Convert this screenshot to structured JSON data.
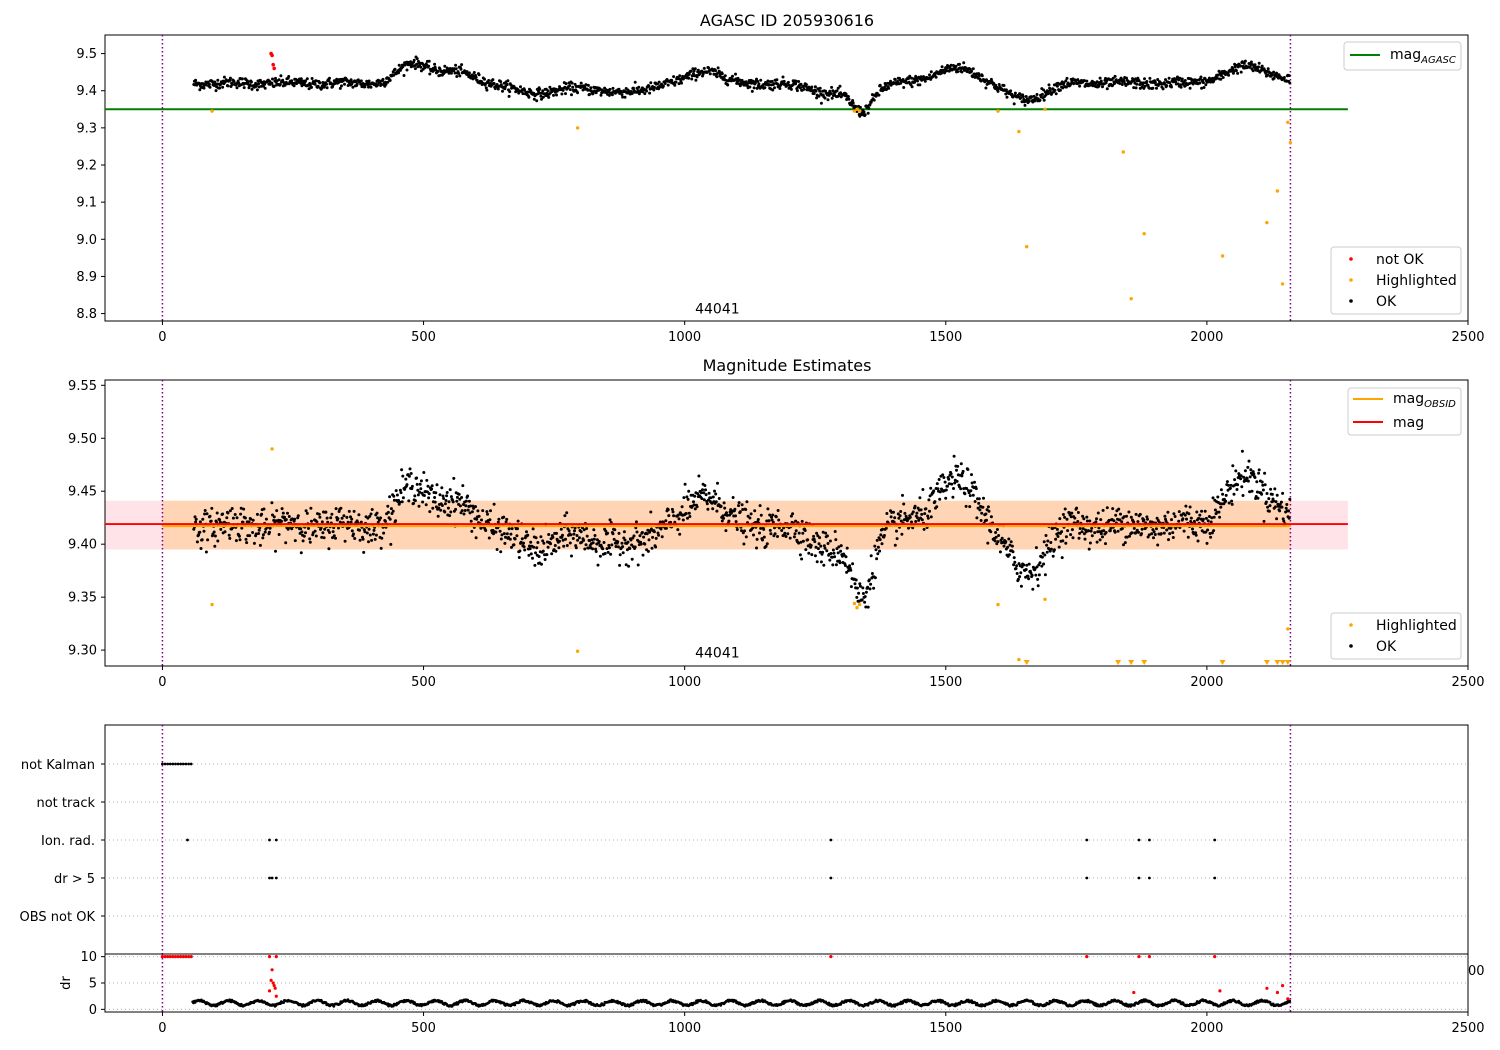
{
  "colors": {
    "ok": "#000000",
    "highlighted": "#ffa500",
    "not_ok": "#ff0000",
    "mag_agasc": "#008000",
    "mag_obsid": "#ffa500",
    "mag": "#ff0000",
    "vline": "#800080"
  },
  "chart_data": [
    {
      "type": "scatter",
      "title": "AGASC ID 205930616",
      "xlim": [
        -110,
        2500
      ],
      "ylim": [
        8.78,
        9.55
      ],
      "xticks": [
        0,
        500,
        1000,
        1500,
        2000,
        2500
      ],
      "yticks": [
        "8.8",
        "8.9",
        "9.0",
        "9.1",
        "9.2",
        "9.3",
        "9.4",
        "9.5"
      ],
      "annotation": {
        "text": "44041",
        "x": 1020,
        "y": 8.8
      },
      "vlines": [
        0,
        2160
      ],
      "hline": {
        "name": "mag_AGASC",
        "y": 9.35,
        "x_end": 2270
      },
      "legend_top": {
        "position": "top-right",
        "entries": [
          {
            "name_base": "mag",
            "name_sub": "AGASC"
          }
        ]
      },
      "legend_bottom": {
        "position": "bottom-right",
        "entries": [
          "not OK",
          "Highlighted",
          "OK"
        ]
      },
      "highlighted_points": [
        [
          95,
          9.345
        ],
        [
          795,
          9.3
        ],
        [
          1325,
          9.345
        ],
        [
          1330,
          9.35
        ],
        [
          1335,
          9.345
        ],
        [
          1600,
          9.345
        ],
        [
          1640,
          9.29
        ],
        [
          1655,
          8.98
        ],
        [
          1690,
          9.35
        ],
        [
          1840,
          9.235
        ],
        [
          1855,
          8.84
        ],
        [
          1880,
          9.015
        ],
        [
          2030,
          8.955
        ],
        [
          2115,
          9.045
        ],
        [
          2135,
          9.13
        ],
        [
          2145,
          8.88
        ],
        [
          2155,
          9.315
        ],
        [
          2160,
          9.26
        ]
      ],
      "not_ok_points": [
        [
          208,
          9.5
        ],
        [
          210,
          9.495
        ],
        [
          212,
          9.47
        ],
        [
          214,
          9.46
        ]
      ],
      "ok_series": {
        "x_start": 60,
        "x_end": 2160,
        "baseline": 9.42,
        "features": [
          {
            "x": 480,
            "dy": 0.05,
            "w": 40
          },
          {
            "x": 560,
            "dy": 0.03,
            "w": 60
          },
          {
            "x": 720,
            "dy": -0.025,
            "w": 80
          },
          {
            "x": 880,
            "dy": -0.025,
            "w": 60
          },
          {
            "x": 1040,
            "dy": 0.035,
            "w": 40
          },
          {
            "x": 1300,
            "dy": -0.03,
            "w": 70
          },
          {
            "x": 1340,
            "dy": -0.055,
            "w": 25
          },
          {
            "x": 1520,
            "dy": 0.04,
            "w": 60
          },
          {
            "x": 1650,
            "dy": -0.045,
            "w": 50
          },
          {
            "x": 2080,
            "dy": 0.045,
            "w": 60
          }
        ],
        "noise": 0.012
      }
    },
    {
      "type": "scatter",
      "title": "Magnitude Estimates",
      "xlim": [
        -110,
        2500
      ],
      "ylim": [
        9.285,
        9.555
      ],
      "xticks": [
        0,
        500,
        1000,
        1500,
        2000,
        2500
      ],
      "yticks": [
        "9.30",
        "9.35",
        "9.40",
        "9.45",
        "9.50",
        "9.55"
      ],
      "annotation": {
        "text": "44041",
        "x": 1020,
        "y": 9.293
      },
      "vlines": [
        0,
        2160
      ],
      "band": {
        "y_low": 9.395,
        "y_high": 9.441,
        "x_end": 2270
      },
      "mag_line": {
        "y": 9.419,
        "x_end": 2270
      },
      "mag_obsid_line": {
        "y": 9.417,
        "x_start": 0,
        "x_end": 2160
      },
      "legend_top": {
        "position": "top-right",
        "entries": [
          {
            "name_base": "mag",
            "name_sub": "OBSID"
          },
          {
            "name_base": "mag",
            "name_sub": ""
          }
        ]
      },
      "legend_bottom": {
        "position": "bottom-right",
        "entries": [
          "Highlighted",
          "OK"
        ]
      },
      "highlighted_points": [
        [
          95,
          9.343
        ],
        [
          210,
          9.49
        ],
        [
          795,
          9.299
        ],
        [
          1325,
          9.344
        ],
        [
          1330,
          9.34
        ],
        [
          1335,
          9.343
        ],
        [
          1600,
          9.343
        ],
        [
          1640,
          9.291
        ],
        [
          1690,
          9.348
        ],
        [
          2155,
          9.32
        ]
      ],
      "lower_limit_markers_x": [
        1655,
        1830,
        1855,
        1880,
        2030,
        2115,
        2135,
        2145,
        2155
      ],
      "ok_series": {
        "x_start": 60,
        "x_end": 2160,
        "baseline": 9.418,
        "features": [
          {
            "x": 480,
            "dy": 0.035,
            "w": 40
          },
          {
            "x": 560,
            "dy": 0.02,
            "w": 60
          },
          {
            "x": 720,
            "dy": -0.02,
            "w": 80
          },
          {
            "x": 880,
            "dy": -0.02,
            "w": 60
          },
          {
            "x": 1040,
            "dy": 0.03,
            "w": 40
          },
          {
            "x": 1300,
            "dy": -0.025,
            "w": 70
          },
          {
            "x": 1340,
            "dy": -0.05,
            "w": 25
          },
          {
            "x": 1520,
            "dy": 0.04,
            "w": 60
          },
          {
            "x": 1650,
            "dy": -0.045,
            "w": 50
          },
          {
            "x": 2080,
            "dy": 0.045,
            "w": 60
          }
        ],
        "noise": 0.014
      }
    },
    {
      "type": "scatter",
      "title": "",
      "xlim": [
        -110,
        2500
      ],
      "vlines": [
        0,
        2160
      ],
      "flag_rows": [
        {
          "label": "not Kalman",
          "x": [
            0,
            5,
            10,
            15,
            20,
            25,
            30,
            35,
            40,
            45,
            50,
            55
          ]
        },
        {
          "label": "not track",
          "x": []
        },
        {
          "label": "Ion. rad.",
          "x": [
            48,
            205,
            218,
            1280,
            1770,
            1870,
            1890,
            2015
          ]
        },
        {
          "label": "dr > 5",
          "x": [
            205,
            210,
            218,
            1280,
            1770,
            1870,
            1890,
            2015
          ]
        },
        {
          "label": "OBS not OK",
          "x": []
        }
      ]
    },
    {
      "type": "scatter",
      "title": "",
      "ylabel": "dr",
      "xlim": [
        -110,
        2500
      ],
      "ylim": [
        -0.5,
        10.5
      ],
      "xticks": [
        0,
        500,
        1000,
        1500,
        2000,
        2500
      ],
      "yticks": [
        "0",
        "5",
        "10"
      ],
      "overflow_tick": "00",
      "vlines": [
        0,
        2160
      ],
      "not_ok_points": [
        [
          0,
          10
        ],
        [
          5,
          10
        ],
        [
          10,
          10
        ],
        [
          15,
          10
        ],
        [
          20,
          10
        ],
        [
          25,
          10
        ],
        [
          30,
          10
        ],
        [
          35,
          10
        ],
        [
          40,
          10
        ],
        [
          45,
          10
        ],
        [
          50,
          10
        ],
        [
          55,
          10
        ],
        [
          205,
          10
        ],
        [
          218,
          10
        ],
        [
          1280,
          10
        ],
        [
          1770,
          10
        ],
        [
          1870,
          10
        ],
        [
          1890,
          10
        ],
        [
          2015,
          10
        ],
        [
          205,
          3.5
        ],
        [
          208,
          5.5
        ],
        [
          210,
          7.5
        ],
        [
          212,
          5
        ],
        [
          214,
          4.5
        ],
        [
          216,
          4
        ],
        [
          218,
          2.5
        ],
        [
          1860,
          3.2
        ],
        [
          2025,
          3.5
        ],
        [
          2115,
          4
        ],
        [
          2135,
          3.2
        ],
        [
          2145,
          4.5
        ],
        [
          2155,
          2
        ]
      ],
      "ok_series": {
        "x_start": 58,
        "x_end": 2160,
        "baseline": 1.0,
        "noise": 0.5
      }
    }
  ]
}
